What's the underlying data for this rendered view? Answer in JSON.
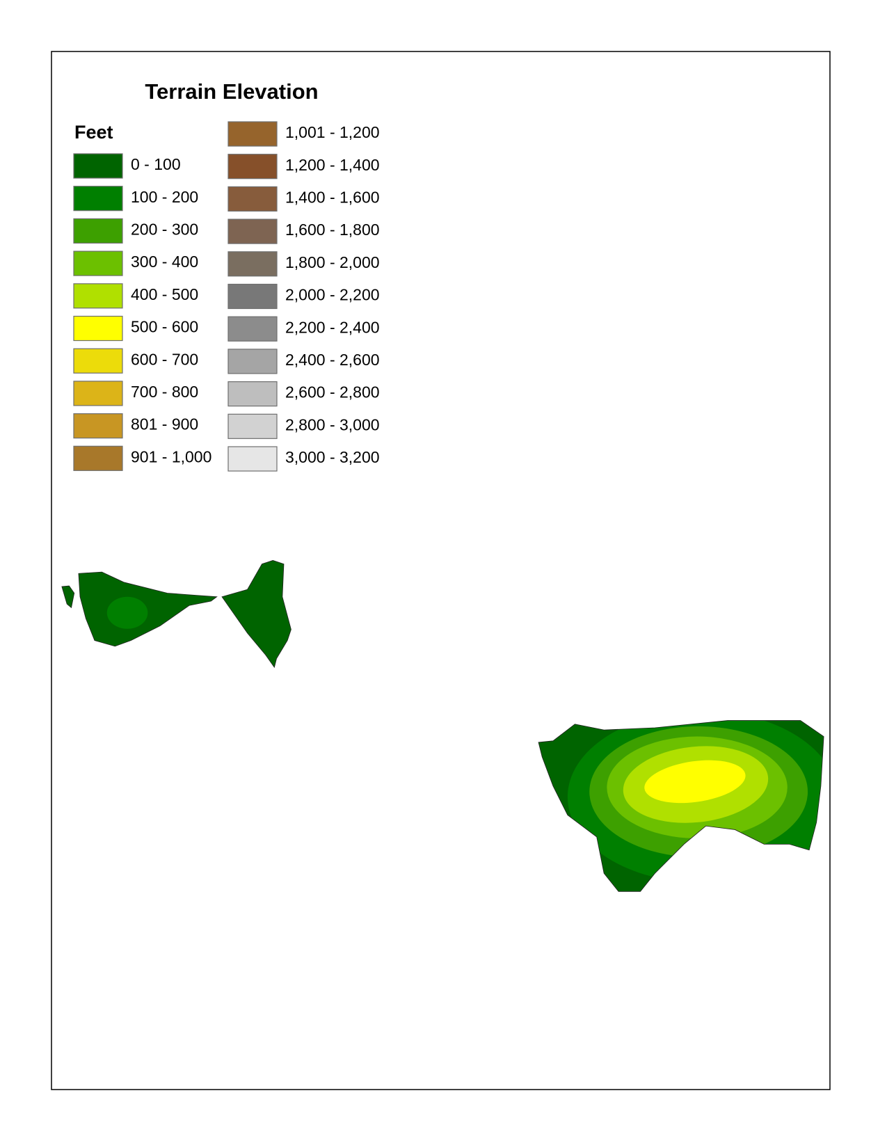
{
  "legend": {
    "title": "Terrain Elevation",
    "unit_label": "Feet",
    "classes": [
      {
        "label": "0 - 100",
        "color": "#006400"
      },
      {
        "label": "100 - 200",
        "color": "#007f00"
      },
      {
        "label": "200 - 300",
        "color": "#3da000"
      },
      {
        "label": "300 - 400",
        "color": "#6cc000"
      },
      {
        "label": "400 - 500",
        "color": "#b0e000"
      },
      {
        "label": "500 - 600",
        "color": "#ffff00"
      },
      {
        "label": "600 - 700",
        "color": "#ecdc0a"
      },
      {
        "label": "700 - 800",
        "color": "#dcb418"
      },
      {
        "label": "801 - 900",
        "color": "#c89623"
      },
      {
        "label": "901 - 1,000",
        "color": "#a8782a"
      },
      {
        "label": "1,001 - 1,200",
        "color": "#96642c"
      },
      {
        "label": "1,200 - 1,400",
        "color": "#86502a"
      },
      {
        "label": "1,400 - 1,600",
        "color": "#875c3c"
      },
      {
        "label": "1,600 - 1,800",
        "color": "#7e6452"
      },
      {
        "label": "1,800 - 2,000",
        "color": "#7a6e60"
      },
      {
        "label": "2,000 - 2,200",
        "color": "#787878"
      },
      {
        "label": "2,200 - 2,400",
        "color": "#8c8c8c"
      },
      {
        "label": "2,400 - 2,600",
        "color": "#a5a5a5"
      },
      {
        "label": "2,600 - 2,800",
        "color": "#bebebe"
      },
      {
        "label": "2,800 - 3,000",
        "color": "#d2d2d2"
      },
      {
        "label": "3,000 - 3,200",
        "color": "#e6e6e6"
      }
    ]
  }
}
